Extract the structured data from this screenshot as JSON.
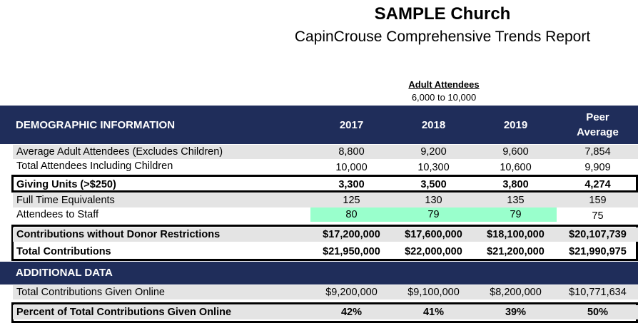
{
  "header": {
    "title": "SAMPLE Church",
    "subtitle": "CapinCrouse Comprehensive Trends Report",
    "group_label": "Adult Attendees",
    "group_range": "6,000 to 10,000"
  },
  "demographic": {
    "section_title": "DEMOGRAPHIC INFORMATION",
    "columns": [
      "2017",
      "2018",
      "2019"
    ],
    "peer_col": [
      "Peer",
      "Average"
    ]
  },
  "rows": [
    {
      "label": "Average Adult Attendees (Excludes Children)",
      "values": [
        "8,800",
        "9,200",
        "9,600",
        "7,854"
      ]
    },
    {
      "label": "Total Attendees Including Children",
      "values": [
        "10,000",
        "10,300",
        "10,600",
        "9,909"
      ]
    },
    {
      "label": "Giving Units (>$250)",
      "values": [
        "3,300",
        "3,500",
        "3,800",
        "4,274"
      ]
    },
    {
      "label": "Full Time Equivalents",
      "values": [
        "125",
        "130",
        "135",
        "159"
      ]
    },
    {
      "label": "Attendees to Staff",
      "values": [
        "80",
        "79",
        "79",
        "75"
      ]
    },
    {
      "label": "Contributions without Donor Restrictions",
      "values": [
        "$17,200,000",
        "$17,600,000",
        "$18,100,000",
        "$20,107,739"
      ]
    },
    {
      "label": "Total Contributions",
      "values": [
        "$21,950,000",
        "$22,000,000",
        "$21,200,000",
        "$21,990,975"
      ]
    }
  ],
  "additional": {
    "section_title": "ADDITIONAL DATA",
    "rows": [
      {
        "label": "Total Contributions Given Online",
        "values": [
          "$9,200,000",
          "$9,100,000",
          "$8,200,000",
          "$10,771,634"
        ]
      },
      {
        "label": "Percent of Total Contributions Given Online",
        "values": [
          "42%",
          "41%",
          "39%",
          "50%"
        ]
      }
    ]
  },
  "colors": {
    "header_band": "#1f2d5a",
    "highlight_green": "#99ffcc",
    "row_shade": "#e4e4e4"
  }
}
